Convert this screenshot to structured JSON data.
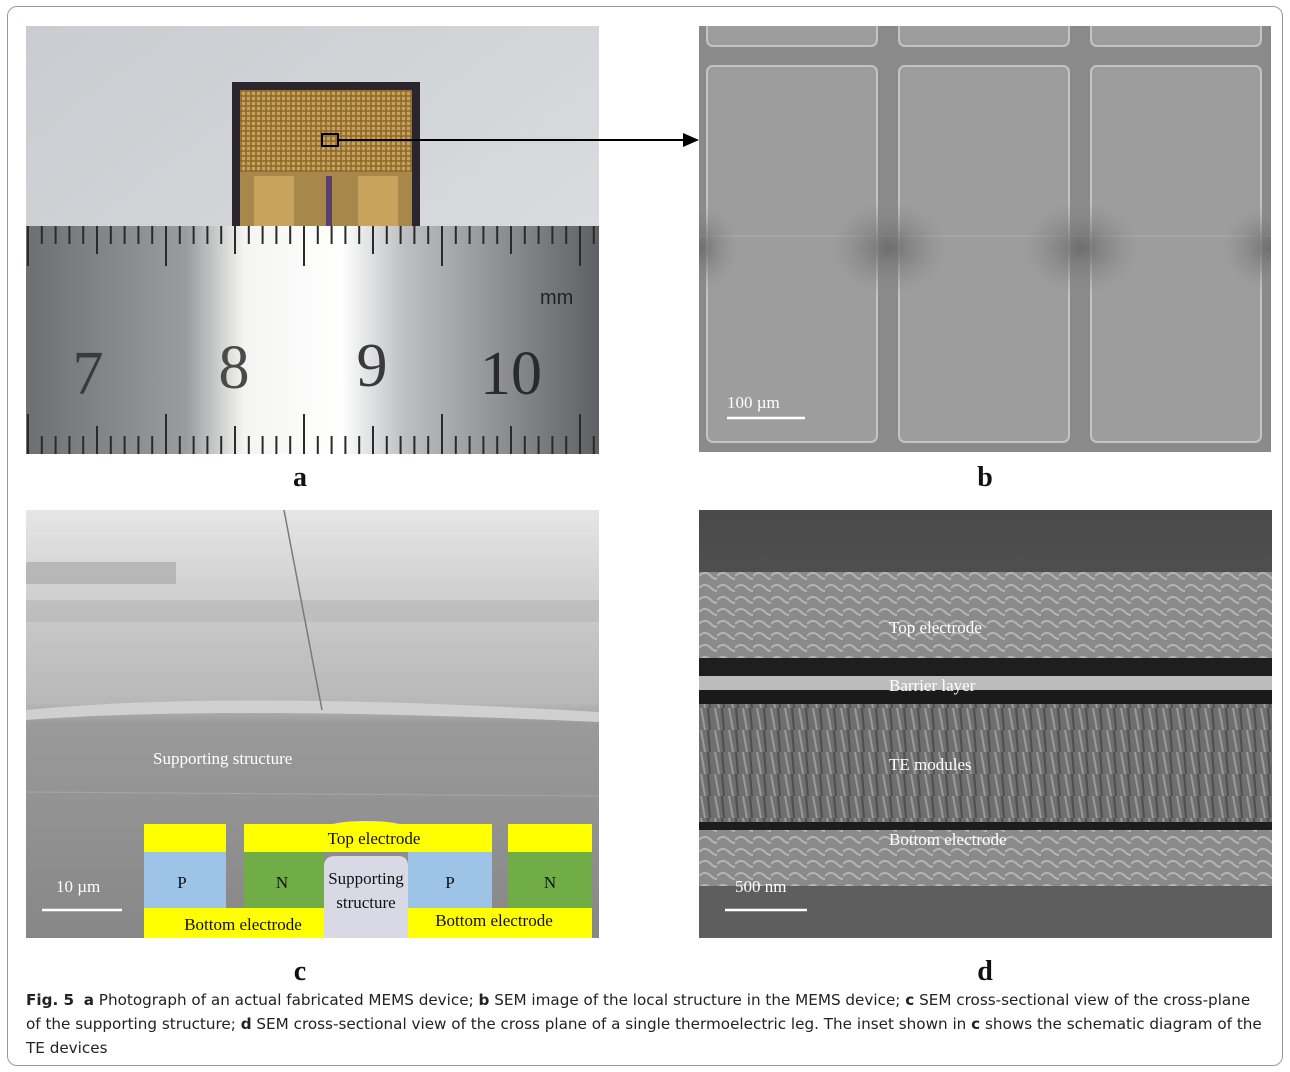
{
  "figure": {
    "panels": {
      "a": {
        "label": "a",
        "ruler_numbers": [
          "7",
          "8",
          "9",
          "10"
        ],
        "ruler_unit": "mm"
      },
      "b": {
        "label": "b",
        "scale_bar": "100 µm"
      },
      "c": {
        "label": "c",
        "scale_bar": "10 µm",
        "sem_label": "Supporting structure",
        "inset": {
          "top_electrode": "Top electrode",
          "p": "P",
          "n": "N",
          "supporting_line1": "Supporting",
          "supporting_line2": "structure",
          "bottom_electrode": "Bottom electrode",
          "colors": {
            "electrode": "#ffff00",
            "p": "#9dc3e6",
            "n": "#70ad47",
            "support": "#d9d9e6"
          }
        }
      },
      "d": {
        "label": "d",
        "scale_bar": "500 nm",
        "layers": [
          "Top electrode",
          "Barrier layer",
          "TE modules",
          "Bottom electrode"
        ]
      }
    },
    "caption": {
      "fig_label": "Fig. 5",
      "a": "a",
      "a_text": " Photograph of an actual fabricated MEMS device; ",
      "b": "b",
      "b_text": " SEM image of the local structure in the MEMS device; ",
      "c": "c",
      "c_text": " SEM cross-sectional view of the cross-plane of the supporting structure; ",
      "d": "d",
      "d_text": " SEM cross-sectional view of the cross plane of a single thermoelectric leg. The inset shown in ",
      "c2": "c",
      "end_text": " shows the schematic diagram of the TE devices"
    }
  }
}
